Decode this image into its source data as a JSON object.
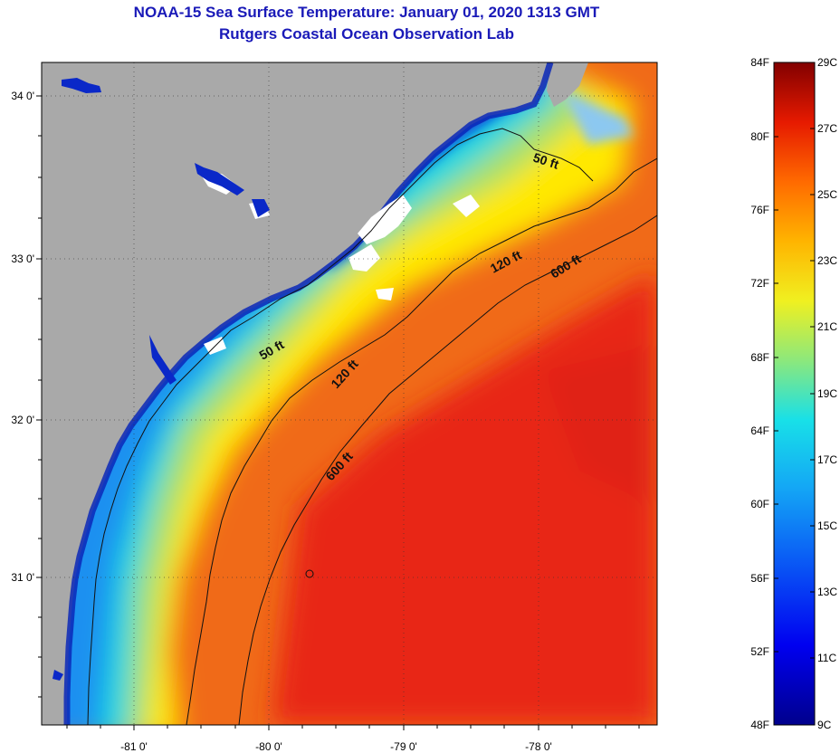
{
  "title": "NOAA-15 Sea Surface Temperature:  January 01, 2020 1313 GMT",
  "subtitle": "Rutgers Coastal Ocean Observation Lab",
  "map": {
    "lat_labels": [
      "34 0'",
      "33 0'",
      "32 0'",
      "31 0'"
    ],
    "lon_labels": [
      "-81 0'",
      "-80 0'",
      "-79 0'",
      "-78 0'"
    ],
    "contours": [
      {
        "label": "50 ft"
      },
      {
        "label": "120 ft"
      },
      {
        "label": "600 ft"
      }
    ],
    "colors": {
      "land": "#a9a9a9",
      "cloud": "#ffffff",
      "cold": "#0a28c8",
      "cool": "#1fa0f0",
      "mild": "#18e0e0",
      "green": "#a8e068",
      "warm": "#fff000",
      "hot": "#f07818",
      "hottest": "#e8281a"
    }
  },
  "colorbar": {
    "fahrenheit": [
      "84F",
      "80F",
      "76F",
      "72F",
      "68F",
      "64F",
      "60F",
      "56F",
      "52F",
      "48F"
    ],
    "celsius": [
      "29C",
      "27C",
      "25C",
      "23C",
      "21C",
      "19C",
      "17C",
      "15C",
      "13C",
      "11C",
      "9C"
    ]
  }
}
